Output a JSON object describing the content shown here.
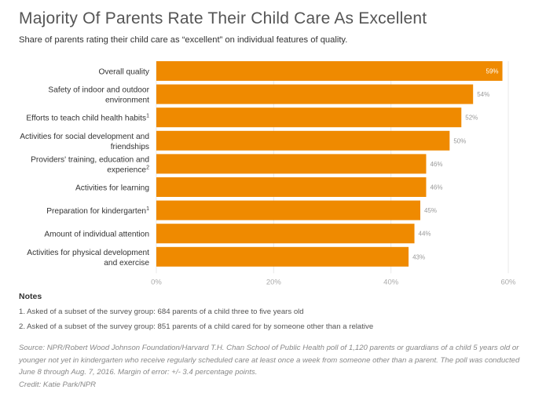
{
  "title": "Majority Of Parents Rate Their Child Care As Excellent",
  "subtitle": "Share of parents rating their child care as “excellent” on individual features of quality.",
  "colors": {
    "bar": "#EF8A00",
    "inside_label": "#ffffff",
    "outside_label": "#999999",
    "axis_text": "#aaaaaa",
    "grid": "#e8e8e8"
  },
  "chart_data": {
    "type": "bar",
    "orientation": "horizontal",
    "categories": [
      {
        "lines": [
          "Overall quality"
        ],
        "sup": ""
      },
      {
        "lines": [
          "Safety of indoor and outdoor",
          "environment"
        ],
        "sup": ""
      },
      {
        "lines": [
          "Efforts to teach child health habits"
        ],
        "sup": "1"
      },
      {
        "lines": [
          "Activities for social development and",
          "friendships"
        ],
        "sup": ""
      },
      {
        "lines": [
          "Providers' training, education and",
          "experience"
        ],
        "sup": "2"
      },
      {
        "lines": [
          "Activities for learning"
        ],
        "sup": ""
      },
      {
        "lines": [
          "Preparation for kindergarten"
        ],
        "sup": "1"
      },
      {
        "lines": [
          "Amount of individual attention"
        ],
        "sup": ""
      },
      {
        "lines": [
          "Activities for physical development",
          "and exercise"
        ],
        "sup": ""
      }
    ],
    "values": [
      59,
      54,
      52,
      50,
      46,
      46,
      45,
      44,
      43
    ],
    "value_labels": [
      "59%",
      "54%",
      "52%",
      "50%",
      "46%",
      "46%",
      "45%",
      "44%",
      "43%"
    ],
    "xlim": [
      0,
      60
    ],
    "xticks": [
      0,
      20,
      40,
      60
    ],
    "xtick_labels": [
      "0%",
      "20%",
      "40%",
      "60%"
    ],
    "xlabel": "",
    "ylabel": ""
  },
  "notes": {
    "heading": "Notes",
    "items": [
      "1. Asked of a subset of the survey group: 684 parents of a child three to five years old",
      "2. Asked of a subset of the survey group: 851 parents of a child cared for by someone other than a relative"
    ]
  },
  "source": "Source: NPR/Robert Wood Johnson Foundation/Harvard T.H. Chan School of Public Health poll of 1,120 parents or guardians of a child 5 years old or younger not yet in kindergarten who receive regularly scheduled care at least once a week from someone other than a parent. The poll was conducted June 8 through Aug. 7, 2016. Margin of error: +/- 3.4 percentage points.",
  "credit": "Credit: Katie Park/NPR"
}
